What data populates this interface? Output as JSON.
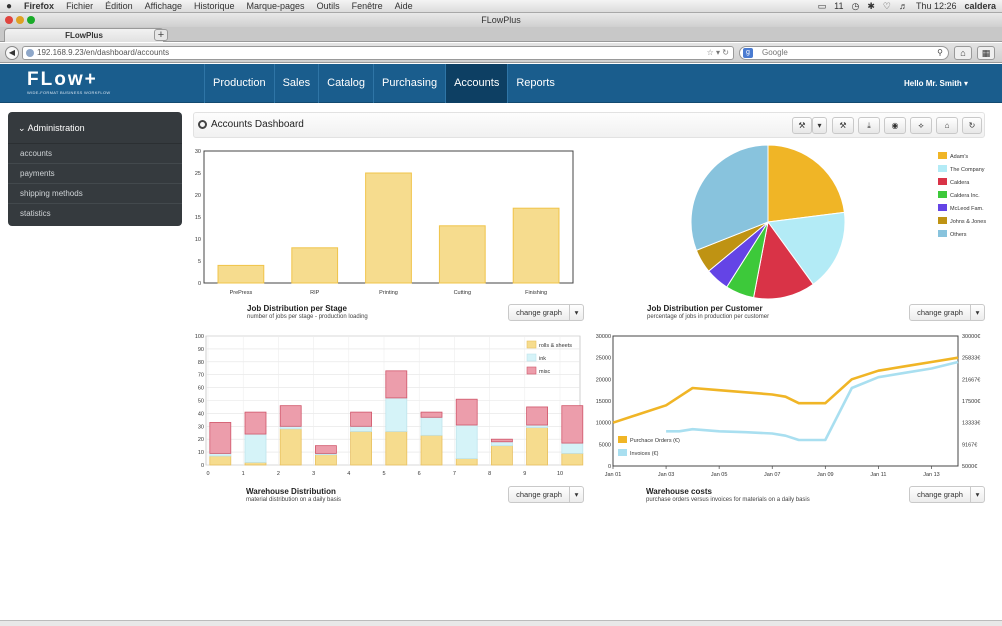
{
  "os_menubar": {
    "apple": "",
    "items": [
      "Firefox",
      "Fichier",
      "Édition",
      "Affichage",
      "Historique",
      "Marque-pages",
      "Outils",
      "Fenêtre",
      "Aide"
    ],
    "status_text": "11",
    "clock": "Thu 12:26",
    "user": "caldera"
  },
  "window": {
    "title": "FLowPlus"
  },
  "browser": {
    "tab_label": "FLowPlus",
    "new_tab": "+",
    "url": "192.168.9.23/en/dashboard/accounts",
    "search_placeholder": "Google"
  },
  "app": {
    "logo": "FLow+",
    "logo_tagline": "WIDE-FORMAT BUSINESS WORKFLOW",
    "nav": [
      {
        "label": "Production"
      },
      {
        "label": "Sales"
      },
      {
        "label": "Catalog"
      },
      {
        "label": "Purchasing"
      },
      {
        "label": "Accounts",
        "active": true
      },
      {
        "label": "Reports"
      }
    ],
    "greeting": "Hello Mr. Smith ▾"
  },
  "sidebar": {
    "heading": "Administration",
    "items": [
      "accounts",
      "payments",
      "shipping methods",
      "statistics"
    ]
  },
  "dashboard": {
    "title": "Accounts Dashboard",
    "change_graph_label": "change graph",
    "toolbar_icons": [
      "wrench-icon",
      "caret-down-icon",
      "wrench-icon",
      "download-icon",
      "camera-icon",
      "pin-icon",
      "home-icon",
      "refresh-icon"
    ]
  },
  "chart_data": [
    {
      "type": "bar",
      "title": "Job Distribution per Stage",
      "subtitle": "number of jobs per stage - production loading",
      "categories": [
        "PrePress",
        "RIP",
        "Printing",
        "Cutting",
        "Finishing"
      ],
      "values": [
        4,
        8,
        25,
        13,
        17
      ],
      "ylim": [
        0,
        30
      ],
      "yticks": [
        0,
        5,
        10,
        15,
        20,
        25,
        30
      ],
      "color": "#f6dc8e",
      "grid": false
    },
    {
      "type": "pie",
      "title": "Job Distribution per Customer",
      "subtitle": "percentage of jobs in production per customer",
      "slices": [
        {
          "name": "Adam's",
          "value": 23,
          "color": "#f0b526"
        },
        {
          "name": "The Company",
          "value": 17,
          "color": "#b3ebf6"
        },
        {
          "name": "Caldera",
          "value": 13,
          "color": "#d93347"
        },
        {
          "name": "Caldera Inc.",
          "value": 6,
          "color": "#3dc93a"
        },
        {
          "name": "McLeod Fam.",
          "value": 5,
          "color": "#6444e6"
        },
        {
          "name": "Johns & Jones",
          "value": 5,
          "color": "#bf9313"
        },
        {
          "name": "Others",
          "value": 31,
          "color": "#88c3dd"
        }
      ],
      "legend": "right"
    },
    {
      "type": "bar",
      "stacked": true,
      "title": "Warehouse Distribution",
      "subtitle": "material distribution on a daily basis",
      "x": [
        0,
        1,
        2,
        3,
        4,
        5,
        6,
        7,
        8,
        9,
        10
      ],
      "series": [
        {
          "name": "rolls & sheets",
          "color": "#f6dc8e",
          "values": [
            7,
            2,
            28,
            8,
            26,
            26,
            23,
            5,
            15,
            29,
            9
          ]
        },
        {
          "name": "ink",
          "color": "#d5f3f8",
          "values": [
            2,
            22,
            2,
            1,
            4,
            26,
            14,
            26,
            3,
            2,
            8
          ]
        },
        {
          "name": "misc",
          "color": "#ec9dab",
          "values": [
            24,
            17,
            16,
            6,
            11,
            21,
            4,
            20,
            2,
            14,
            29
          ]
        }
      ],
      "ylim": [
        0,
        100
      ],
      "yticks": [
        0,
        10,
        20,
        30,
        40,
        50,
        60,
        70,
        80,
        90,
        100
      ],
      "grid": true,
      "legend": "top-right"
    },
    {
      "type": "line",
      "title": "Warehouse costs",
      "subtitle": "purchase orders versus invoices for materials on a daily basis",
      "xticks": [
        "Jan 01",
        "Jan 03",
        "Jan 05",
        "Jan 07",
        "Jan 09",
        "Jan 11",
        "Jan 13"
      ],
      "x": [
        1,
        2,
        3,
        3.5,
        4,
        5,
        6,
        7,
        7.5,
        8,
        8.5,
        9,
        10,
        11,
        12,
        13,
        14
      ],
      "series": [
        {
          "name": "Purchace Orders (€)",
          "color": "#f0b526",
          "axis": "left",
          "values": [
            10000,
            12000,
            14000,
            16000,
            18000,
            17500,
            17000,
            16500,
            16000,
            14500,
            14500,
            14500,
            20000,
            22000,
            23000,
            24000,
            25000
          ]
        },
        {
          "name": "Invoices (€)",
          "color": "#a9dff0",
          "axis": "left",
          "values": [
            null,
            null,
            8000,
            8000,
            8500,
            8000,
            7800,
            7500,
            7000,
            6000,
            6000,
            6000,
            18000,
            20500,
            21500,
            22500,
            24000
          ]
        }
      ],
      "ylim_left": [
        0,
        30000
      ],
      "yticks_left": [
        0,
        5000,
        10000,
        15000,
        20000,
        25000,
        30000
      ],
      "yticks_right": [
        "5000€",
        "9167€",
        "13333€",
        "17500€",
        "21667€",
        "25833€",
        "30000€"
      ],
      "grid": false,
      "legend": "bottom-left"
    }
  ]
}
